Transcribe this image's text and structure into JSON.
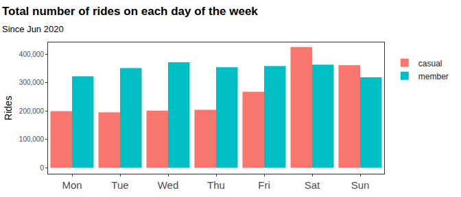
{
  "chart_data": {
    "type": "bar",
    "title": "Total number of rides on each day of the week",
    "subtitle": "Since Jun 2020",
    "y_label": "Rides",
    "categories": [
      "Mon",
      "Tue",
      "Wed",
      "Thu",
      "Fri",
      "Sat",
      "Sun"
    ],
    "series": [
      {
        "name": "casual",
        "color": "#F8766D",
        "values": [
          199000,
          195000,
          201000,
          204000,
          267000,
          425000,
          361000
        ]
      },
      {
        "name": "member",
        "color": "#00BFC4",
        "values": [
          322000,
          351000,
          371000,
          354000,
          358000,
          363000,
          318000
        ]
      }
    ],
    "ylim": [
      -21000,
      441000
    ],
    "yticks": [
      0,
      {
        "value": 100000,
        "label": "100,000"
      },
      {
        "value": 200000,
        "label": "200,000"
      },
      {
        "value": 300000,
        "label": "300,000"
      },
      {
        "value": 400000,
        "label": "400,000"
      }
    ],
    "grid": false,
    "legend": "right"
  }
}
